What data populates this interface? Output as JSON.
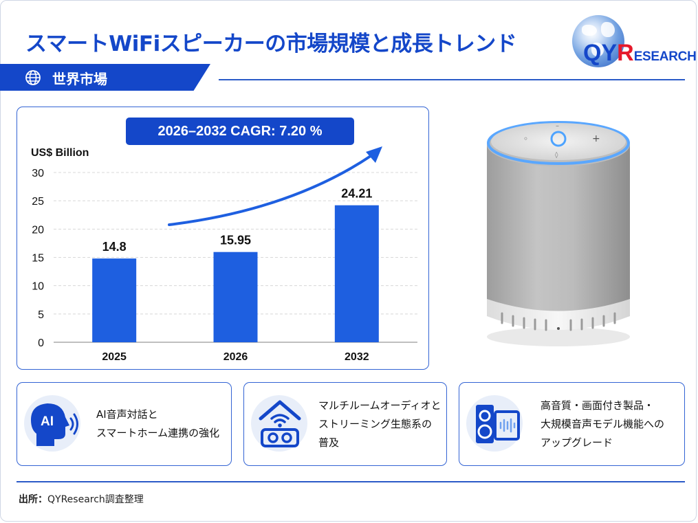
{
  "header": {
    "title": "スマートWiFiスピーカーの市場規模と成長トレンド",
    "logo_qy": "QY",
    "logo_r": "R",
    "logo_rest": "ESEARCH"
  },
  "section": {
    "label": "世界市場",
    "icon": "globe-icon"
  },
  "cagr_label": "2026–2032 CAGR: 7.20 %",
  "chart_data": {
    "type": "bar",
    "ylabel": "US$ Billion",
    "categories": [
      "2025",
      "2026",
      "2032"
    ],
    "values": [
      14.8,
      15.95,
      24.21
    ],
    "value_labels": [
      "14.8",
      "15.95",
      "24.21"
    ],
    "ylim": [
      0,
      30
    ],
    "yticks": [
      0,
      5,
      10,
      15,
      20,
      25,
      30
    ],
    "grid": true,
    "bar_color": "#1e5fe0",
    "accent_color": "#1447c9"
  },
  "features": [
    {
      "icon": "ai-voice-head-icon",
      "lines": [
        "AI音声対話と",
        "スマートホーム連携の強化"
      ]
    },
    {
      "icon": "home-wifi-speaker-icon",
      "lines": [
        "マルチルームオーディオと",
        "ストリーミング生態系の",
        "普及"
      ]
    },
    {
      "icon": "speaker-display-icon",
      "lines": [
        "高音質・画面付き製品・",
        "大規模音声モデル機能への",
        "アップグレード"
      ]
    }
  ],
  "source": {
    "label": "出所：",
    "text": "QYResearch調査整理"
  }
}
